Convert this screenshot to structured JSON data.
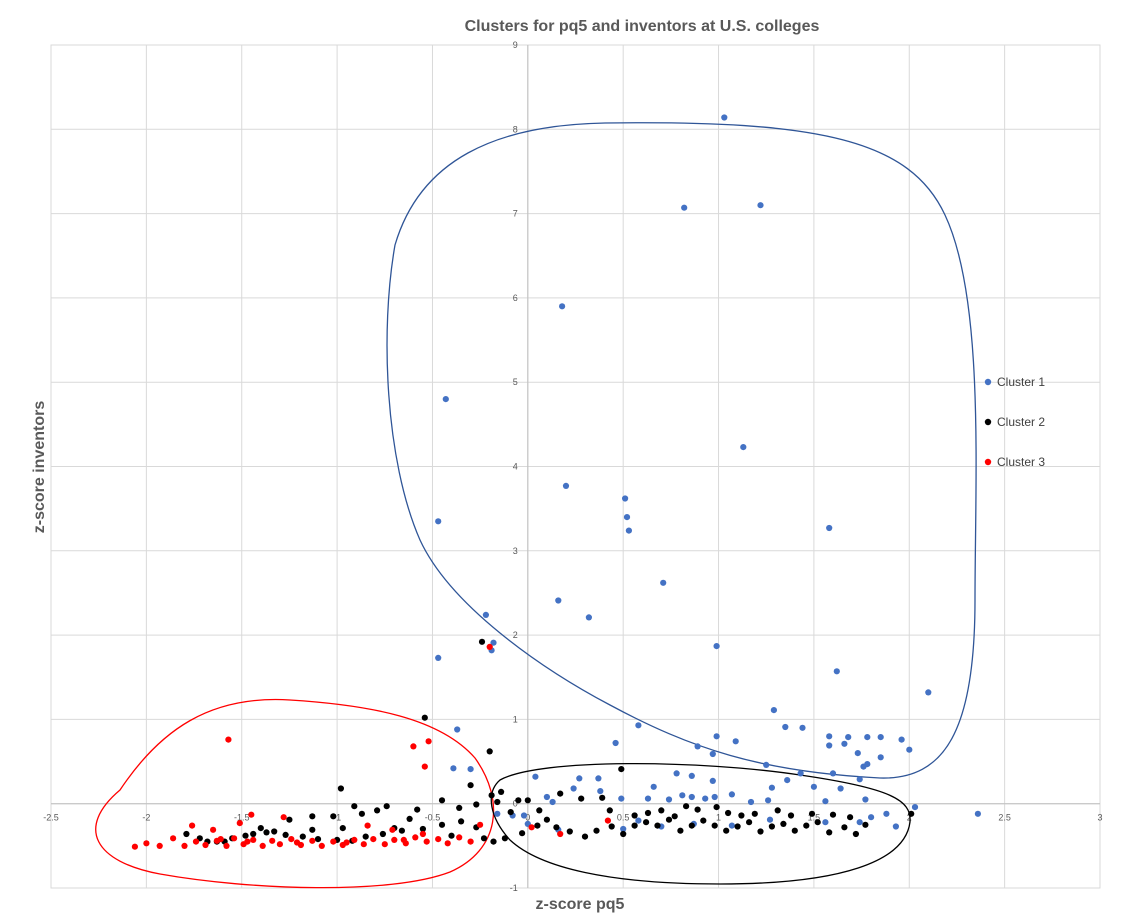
{
  "chart_data": {
    "type": "scatter",
    "title": "Clusters for pq5 and inventors at U.S. colleges",
    "xlabel": "z-score pq5",
    "ylabel": "z-score inventors",
    "xlim": [
      -2.5,
      3
    ],
    "ylim": [
      -1,
      9
    ],
    "x_ticks": [
      "-2.5",
      "-2",
      "-1.5",
      "-1",
      "-0.5",
      "0",
      "0.5",
      "1",
      "1.5",
      "2",
      "2.5",
      "3"
    ],
    "y_ticks": [
      "-1",
      "0",
      "1",
      "2",
      "3",
      "4",
      "5",
      "6",
      "7",
      "8",
      "9"
    ],
    "grid": true,
    "legend_position": "right",
    "series": [
      {
        "name": "Cluster 1",
        "color": "#4472c4",
        "points": [
          [
            1.03,
            8.14
          ],
          [
            0.82,
            7.07
          ],
          [
            1.22,
            7.1
          ],
          [
            0.18,
            5.9
          ],
          [
            -0.43,
            4.8
          ],
          [
            1.13,
            4.23
          ],
          [
            0.2,
            3.77
          ],
          [
            0.51,
            3.62
          ],
          [
            0.52,
            3.4
          ],
          [
            0.53,
            3.24
          ],
          [
            -0.47,
            3.35
          ],
          [
            1.58,
            3.27
          ],
          [
            0.71,
            2.62
          ],
          [
            0.16,
            2.41
          ],
          [
            0.32,
            2.21
          ],
          [
            -0.22,
            2.24
          ],
          [
            -0.18,
            1.91
          ],
          [
            -0.19,
            1.82
          ],
          [
            -0.47,
            1.73
          ],
          [
            0.99,
            1.87
          ],
          [
            1.62,
            1.57
          ],
          [
            2.1,
            1.32
          ],
          [
            1.29,
            1.11
          ],
          [
            0.58,
            0.93
          ],
          [
            1.35,
            0.91
          ],
          [
            1.44,
            0.9
          ],
          [
            1.58,
            0.8
          ],
          [
            1.68,
            0.79
          ],
          [
            1.78,
            0.79
          ],
          [
            1.85,
            0.79
          ],
          [
            1.96,
            0.76
          ],
          [
            0.99,
            0.8
          ],
          [
            1.09,
            0.74
          ],
          [
            1.58,
            0.69
          ],
          [
            1.66,
            0.71
          ],
          [
            2.0,
            0.64
          ],
          [
            0.89,
            0.68
          ],
          [
            0.97,
            0.59
          ],
          [
            0.46,
            0.72
          ],
          [
            1.73,
            0.6
          ],
          [
            1.85,
            0.55
          ],
          [
            -0.37,
            0.88
          ],
          [
            -0.39,
            0.42
          ],
          [
            -0.3,
            0.41
          ],
          [
            1.25,
            0.46
          ],
          [
            1.43,
            0.36
          ],
          [
            1.6,
            0.36
          ],
          [
            1.78,
            0.47
          ],
          [
            1.76,
            0.44
          ],
          [
            1.74,
            0.29
          ],
          [
            0.04,
            0.32
          ],
          [
            0.27,
            0.3
          ],
          [
            0.37,
            0.3
          ],
          [
            0.38,
            0.15
          ],
          [
            0.78,
            0.36
          ],
          [
            0.86,
            0.33
          ],
          [
            0.97,
            0.27
          ],
          [
            1.36,
            0.28
          ],
          [
            1.28,
            0.19
          ],
          [
            1.5,
            0.2
          ],
          [
            1.64,
            0.18
          ],
          [
            0.66,
            0.2
          ],
          [
            0.81,
            0.1
          ],
          [
            0.86,
            0.08
          ],
          [
            0.98,
            0.08
          ],
          [
            1.07,
            0.11
          ],
          [
            0.1,
            0.08
          ],
          [
            0.13,
            0.02
          ],
          [
            0.24,
            0.18
          ],
          [
            0.49,
            0.06
          ],
          [
            0.63,
            0.06
          ],
          [
            0.74,
            0.05
          ],
          [
            0.93,
            0.06
          ],
          [
            1.17,
            0.02
          ],
          [
            1.26,
            0.04
          ],
          [
            1.56,
            0.03
          ],
          [
            1.77,
            0.05
          ],
          [
            2.03,
            -0.04
          ],
          [
            2.36,
            -0.12
          ],
          [
            1.88,
            -0.12
          ],
          [
            1.8,
            -0.16
          ],
          [
            1.74,
            -0.22
          ],
          [
            1.56,
            -0.22
          ],
          [
            1.27,
            -0.19
          ],
          [
            1.07,
            -0.26
          ],
          [
            0.87,
            -0.24
          ],
          [
            0.7,
            -0.27
          ],
          [
            0.5,
            -0.3
          ],
          [
            0.58,
            -0.2
          ],
          [
            -0.02,
            -0.14
          ],
          [
            -0.08,
            -0.14
          ],
          [
            0.0,
            -0.24
          ],
          [
            0.16,
            -0.31
          ],
          [
            -0.16,
            -0.12
          ],
          [
            1.93,
            -0.27
          ]
        ]
      },
      {
        "name": "Cluster 2",
        "color": "#000000",
        "points": [
          [
            -0.24,
            1.92
          ],
          [
            -0.54,
            1.02
          ],
          [
            -0.2,
            0.62
          ],
          [
            -0.98,
            0.18
          ],
          [
            0.49,
            0.41
          ],
          [
            -0.3,
            0.22
          ],
          [
            -0.19,
            0.1
          ],
          [
            -0.14,
            0.14
          ],
          [
            -0.16,
            0.02
          ],
          [
            -0.05,
            0.04
          ],
          [
            -0.27,
            -0.01
          ],
          [
            -0.45,
            0.04
          ],
          [
            -0.58,
            -0.07
          ],
          [
            -0.74,
            -0.03
          ],
          [
            -0.79,
            -0.08
          ],
          [
            -0.91,
            -0.03
          ],
          [
            -1.02,
            -0.15
          ],
          [
            -1.13,
            -0.15
          ],
          [
            -1.25,
            -0.19
          ],
          [
            -1.33,
            -0.33
          ],
          [
            -1.44,
            -0.36
          ],
          [
            -1.55,
            -0.41
          ],
          [
            -1.63,
            -0.45
          ],
          [
            -1.72,
            -0.41
          ],
          [
            -1.79,
            -0.36
          ],
          [
            -1.68,
            -0.45
          ],
          [
            -1.59,
            -0.45
          ],
          [
            -1.48,
            -0.38
          ],
          [
            -1.37,
            -0.34
          ],
          [
            -1.27,
            -0.37
          ],
          [
            -1.18,
            -0.39
          ],
          [
            -1.1,
            -0.42
          ],
          [
            -1.0,
            -0.43
          ],
          [
            -0.92,
            -0.44
          ],
          [
            -0.85,
            -0.39
          ],
          [
            -0.76,
            -0.36
          ],
          [
            -0.66,
            -0.32
          ],
          [
            -0.55,
            -0.3
          ],
          [
            -0.45,
            -0.25
          ],
          [
            -0.35,
            -0.21
          ],
          [
            -0.27,
            -0.28
          ],
          [
            -0.23,
            -0.41
          ],
          [
            -0.18,
            -0.45
          ],
          [
            -0.12,
            -0.41
          ],
          [
            -0.03,
            -0.35
          ],
          [
            0.05,
            -0.26
          ],
          [
            0.1,
            -0.19
          ],
          [
            0.15,
            -0.28
          ],
          [
            0.22,
            -0.33
          ],
          [
            0.3,
            -0.39
          ],
          [
            0.36,
            -0.32
          ],
          [
            0.44,
            -0.27
          ],
          [
            0.5,
            -0.36
          ],
          [
            0.56,
            -0.26
          ],
          [
            0.62,
            -0.22
          ],
          [
            0.68,
            -0.26
          ],
          [
            0.74,
            -0.19
          ],
          [
            0.8,
            -0.32
          ],
          [
            0.86,
            -0.26
          ],
          [
            0.92,
            -0.2
          ],
          [
            0.98,
            -0.26
          ],
          [
            1.04,
            -0.32
          ],
          [
            1.1,
            -0.27
          ],
          [
            1.16,
            -0.22
          ],
          [
            1.22,
            -0.33
          ],
          [
            1.28,
            -0.27
          ],
          [
            1.34,
            -0.24
          ],
          [
            1.4,
            -0.32
          ],
          [
            1.46,
            -0.26
          ],
          [
            1.52,
            -0.22
          ],
          [
            1.58,
            -0.34
          ],
          [
            1.66,
            -0.28
          ],
          [
            1.72,
            -0.36
          ],
          [
            1.77,
            -0.25
          ],
          [
            2.01,
            -0.12
          ],
          [
            0.17,
            0.12
          ],
          [
            0.28,
            0.06
          ],
          [
            0.39,
            0.07
          ],
          [
            0.43,
            -0.08
          ],
          [
            0.56,
            -0.14
          ],
          [
            0.63,
            -0.11
          ],
          [
            0.7,
            -0.08
          ],
          [
            0.77,
            -0.15
          ],
          [
            0.83,
            -0.03
          ],
          [
            0.89,
            -0.07
          ],
          [
            0.99,
            -0.04
          ],
          [
            1.05,
            -0.11
          ],
          [
            1.12,
            -0.14
          ],
          [
            1.19,
            -0.12
          ],
          [
            1.31,
            -0.08
          ],
          [
            1.38,
            -0.14
          ],
          [
            1.49,
            -0.12
          ],
          [
            1.6,
            -0.13
          ],
          [
            1.69,
            -0.16
          ],
          [
            0.0,
            0.04
          ],
          [
            0.06,
            -0.08
          ],
          [
            -0.09,
            -0.1
          ],
          [
            -0.36,
            -0.05
          ],
          [
            -0.62,
            -0.18
          ],
          [
            -0.87,
            -0.12
          ],
          [
            -1.13,
            -0.31
          ],
          [
            -1.4,
            -0.29
          ],
          [
            -0.7,
            -0.29
          ],
          [
            -0.97,
            -0.29
          ],
          [
            -0.4,
            -0.38
          ]
        ]
      },
      {
        "name": "Cluster 3",
        "color": "#ff0000",
        "points": [
          [
            -0.2,
            1.86
          ],
          [
            -1.57,
            0.76
          ],
          [
            -0.52,
            0.74
          ],
          [
            -0.6,
            0.68
          ],
          [
            -0.54,
            0.44
          ],
          [
            -0.25,
            -0.25
          ],
          [
            0.02,
            -0.28
          ],
          [
            0.17,
            -0.36
          ],
          [
            0.42,
            -0.2
          ],
          [
            -1.28,
            -0.16
          ],
          [
            -1.45,
            -0.13
          ],
          [
            -1.51,
            -0.23
          ],
          [
            -1.65,
            -0.31
          ],
          [
            -1.76,
            -0.26
          ],
          [
            -1.86,
            -0.41
          ],
          [
            -1.93,
            -0.5
          ],
          [
            -2.0,
            -0.47
          ],
          [
            -2.06,
            -0.51
          ],
          [
            -1.8,
            -0.5
          ],
          [
            -1.74,
            -0.45
          ],
          [
            -1.69,
            -0.49
          ],
          [
            -1.63,
            -0.44
          ],
          [
            -1.58,
            -0.5
          ],
          [
            -1.54,
            -0.41
          ],
          [
            -1.49,
            -0.48
          ],
          [
            -1.44,
            -0.43
          ],
          [
            -1.39,
            -0.5
          ],
          [
            -1.34,
            -0.44
          ],
          [
            -1.3,
            -0.48
          ],
          [
            -1.24,
            -0.42
          ],
          [
            -1.19,
            -0.49
          ],
          [
            -1.13,
            -0.44
          ],
          [
            -1.08,
            -0.5
          ],
          [
            -1.02,
            -0.45
          ],
          [
            -0.97,
            -0.49
          ],
          [
            -0.91,
            -0.43
          ],
          [
            -0.86,
            -0.48
          ],
          [
            -0.81,
            -0.42
          ],
          [
            -0.75,
            -0.48
          ],
          [
            -0.7,
            -0.43
          ],
          [
            -0.64,
            -0.47
          ],
          [
            -0.59,
            -0.4
          ],
          [
            -0.53,
            -0.45
          ],
          [
            -0.47,
            -0.42
          ],
          [
            -0.42,
            -0.47
          ],
          [
            -0.36,
            -0.4
          ],
          [
            -0.3,
            -0.45
          ],
          [
            -0.84,
            -0.26
          ],
          [
            -0.71,
            -0.31
          ],
          [
            -0.55,
            -0.36
          ],
          [
            -1.61,
            -0.42
          ],
          [
            -1.47,
            -0.45
          ],
          [
            -1.21,
            -0.46
          ],
          [
            -0.95,
            -0.46
          ],
          [
            -0.65,
            -0.43
          ]
        ]
      }
    ]
  }
}
